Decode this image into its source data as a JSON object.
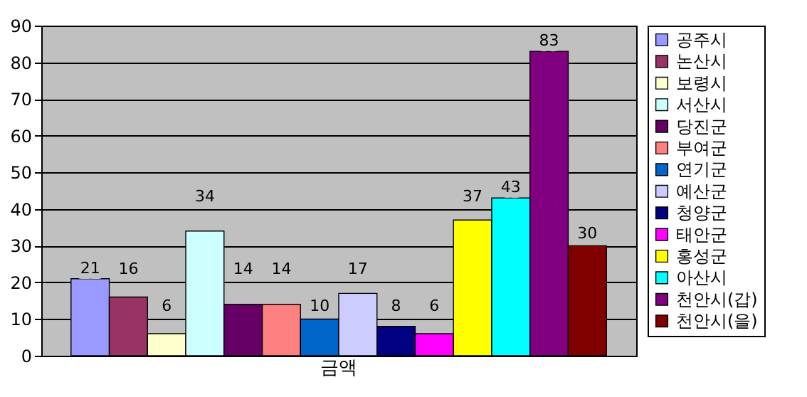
{
  "chart_data": {
    "type": "bar",
    "categories": [
      "금액"
    ],
    "series": [
      {
        "name": "공주시",
        "color": "#9999ff",
        "values": [
          21
        ]
      },
      {
        "name": "논산시",
        "color": "#993366",
        "values": [
          16
        ]
      },
      {
        "name": "보령시",
        "color": "#ffffcc",
        "values": [
          6
        ]
      },
      {
        "name": "서산시",
        "color": "#ccffff",
        "values": [
          34
        ]
      },
      {
        "name": "당진군",
        "color": "#660066",
        "values": [
          14
        ]
      },
      {
        "name": "부여군",
        "color": "#ff8080",
        "values": [
          14
        ]
      },
      {
        "name": "연기군",
        "color": "#0066cc",
        "values": [
          10
        ]
      },
      {
        "name": "예산군",
        "color": "#ccccff",
        "values": [
          17
        ]
      },
      {
        "name": "청양군",
        "color": "#000080",
        "values": [
          8
        ]
      },
      {
        "name": "태안군",
        "color": "#ff00ff",
        "values": [
          6
        ]
      },
      {
        "name": "홍성군",
        "color": "#ffff00",
        "values": [
          37
        ]
      },
      {
        "name": "아산시",
        "color": "#00ffff",
        "values": [
          43
        ]
      },
      {
        "name": "천안시(갑)",
        "color": "#800080",
        "values": [
          83
        ]
      },
      {
        "name": "천안시(을)",
        "color": "#800000",
        "values": [
          30
        ]
      }
    ],
    "ylim": [
      0,
      90
    ],
    "yticks": [
      0,
      10,
      20,
      30,
      40,
      50,
      60,
      70,
      80,
      90
    ],
    "grid": "y",
    "legend": "right",
    "data_labels": true
  }
}
